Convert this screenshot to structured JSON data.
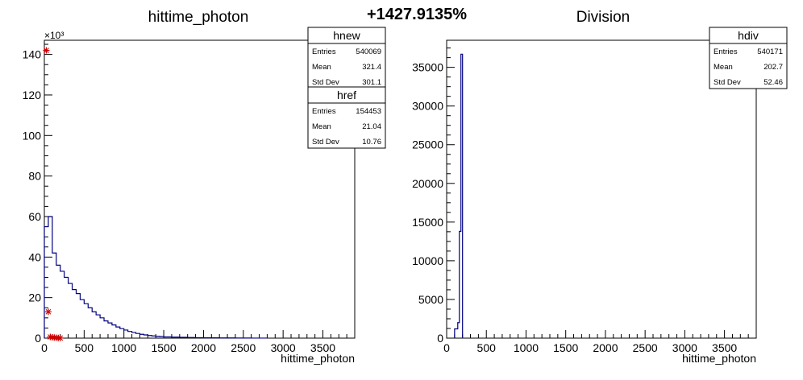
{
  "header": {
    "percent_label": "+1427.9135%"
  },
  "chart_data": [
    {
      "type": "histogram",
      "title": "hittime_photon",
      "xlabel": "hittime_photon",
      "ylabel": "",
      "y_multiplier_label": "×10³",
      "xlim": [
        0,
        3900
      ],
      "ylim": [
        0,
        147
      ],
      "xticks": [
        0,
        500,
        1000,
        1500,
        2000,
        2500,
        3000,
        3500
      ],
      "yticks": [
        0,
        20,
        40,
        60,
        80,
        100,
        120,
        140
      ],
      "series": [
        {
          "name": "hnew",
          "color": "#000080",
          "style": "step",
          "x": [
            0,
            50,
            100,
            150,
            200,
            250,
            300,
            350,
            400,
            450,
            500,
            550,
            600,
            650,
            700,
            750,
            800,
            850,
            900,
            950,
            1000,
            1050,
            1100,
            1150,
            1200,
            1250,
            1300,
            1350,
            1400,
            1450,
            1500,
            1600,
            1700,
            1800,
            1900,
            2000,
            2200,
            2400,
            2600,
            2800
          ],
          "values": [
            55,
            60,
            42,
            36,
            33,
            30,
            27,
            24,
            22,
            19,
            17,
            15,
            13,
            11.5,
            10,
            8.5,
            7.5,
            6.5,
            5.5,
            4.7,
            4,
            3.3,
            2.8,
            2.3,
            1.9,
            1.6,
            1.3,
            1.1,
            0.9,
            0.8,
            0.6,
            0.5,
            0.4,
            0.3,
            0.2,
            0.15,
            0.1,
            0.06,
            0.03,
            0
          ]
        },
        {
          "name": "href",
          "color": "#cc0000",
          "style": "markers",
          "x": [
            25,
            50,
            75,
            100,
            125,
            150,
            175,
            200
          ],
          "values": [
            142,
            13,
            0.6,
            0.4,
            0.3,
            0.2,
            0.1,
            0.05
          ]
        }
      ],
      "stats": [
        {
          "name": "hnew",
          "rows": [
            {
              "label": "Entries",
              "value": "540069"
            },
            {
              "label": "Mean",
              "value": "321.4"
            },
            {
              "label": "Std Dev",
              "value": "301.1"
            }
          ]
        },
        {
          "name": "href",
          "rows": [
            {
              "label": "Entries",
              "value": "154453"
            },
            {
              "label": "Mean",
              "value": "21.04"
            },
            {
              "label": "Std Dev",
              "value": "10.76"
            }
          ]
        }
      ]
    },
    {
      "type": "histogram",
      "title": "Division",
      "xlabel": "hittime_photon",
      "ylabel": "",
      "xlim": [
        0,
        3900
      ],
      "ylim": [
        0,
        38500
      ],
      "xticks": [
        0,
        500,
        1000,
        1500,
        2000,
        2500,
        3000,
        3500
      ],
      "yticks": [
        0,
        5000,
        10000,
        15000,
        20000,
        25000,
        30000,
        35000
      ],
      "series": [
        {
          "name": "hdiv",
          "color": "#000080",
          "style": "step",
          "x": [
            100,
            140,
            160,
            180,
            200
          ],
          "values": [
            1200,
            2000,
            13800,
            36700,
            0
          ]
        }
      ],
      "stats": [
        {
          "name": "hdiv",
          "rows": [
            {
              "label": "Entries",
              "value": "540171"
            },
            {
              "label": "Mean",
              "value": "202.7"
            },
            {
              "label": "Std Dev",
              "value": "52.46"
            }
          ]
        }
      ]
    }
  ]
}
